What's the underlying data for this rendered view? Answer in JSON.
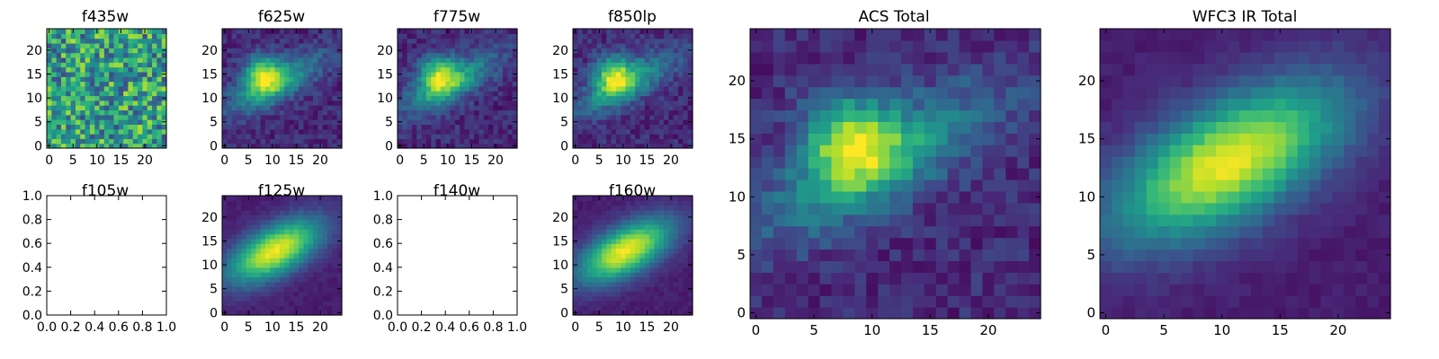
{
  "chart_data": [
    {
      "type": "heatmap",
      "title": "f435w",
      "kind": "image",
      "field": "noise",
      "xlim": [
        -0.5,
        24.5
      ],
      "ylim": [
        -0.5,
        24.5
      ],
      "xticks": [
        0,
        5,
        10,
        15,
        20
      ],
      "yticks": [
        0,
        5,
        10,
        15,
        20
      ],
      "colormap": "viridis"
    },
    {
      "type": "heatmap",
      "title": "f625w",
      "kind": "image",
      "field": "acs",
      "xlim": [
        -0.5,
        24.5
      ],
      "ylim": [
        -0.5,
        24.5
      ],
      "xticks": [
        0,
        5,
        10,
        15,
        20
      ],
      "yticks": [
        0,
        5,
        10,
        15,
        20
      ],
      "colormap": "viridis"
    },
    {
      "type": "heatmap",
      "title": "f775w",
      "kind": "image",
      "field": "acs",
      "xlim": [
        -0.5,
        24.5
      ],
      "ylim": [
        -0.5,
        24.5
      ],
      "xticks": [
        0,
        5,
        10,
        15,
        20
      ],
      "yticks": [
        0,
        5,
        10,
        15,
        20
      ],
      "colormap": "viridis"
    },
    {
      "type": "heatmap",
      "title": "f850lp",
      "kind": "image",
      "field": "acs",
      "xlim": [
        -0.5,
        24.5
      ],
      "ylim": [
        -0.5,
        24.5
      ],
      "xticks": [
        0,
        5,
        10,
        15,
        20
      ],
      "yticks": [
        0,
        5,
        10,
        15,
        20
      ],
      "colormap": "viridis"
    },
    {
      "type": "heatmap",
      "title": "f105w",
      "kind": "empty",
      "xlim": [
        0.0,
        1.0
      ],
      "ylim": [
        0.0,
        1.0
      ],
      "xticks": [
        "0.0",
        "0.2",
        "0.4",
        "0.6",
        "0.8",
        "1.0"
      ],
      "yticks": [
        "0.0",
        "0.2",
        "0.4",
        "0.6",
        "0.8",
        "1.0"
      ]
    },
    {
      "type": "heatmap",
      "title": "f125w",
      "kind": "image",
      "field": "ir",
      "xlim": [
        -0.5,
        24.5
      ],
      "ylim": [
        -0.5,
        24.5
      ],
      "xticks": [
        0,
        5,
        10,
        15,
        20
      ],
      "yticks": [
        0,
        5,
        10,
        15,
        20
      ],
      "colormap": "viridis"
    },
    {
      "type": "heatmap",
      "title": "f140w",
      "kind": "empty",
      "xlim": [
        0.0,
        1.0
      ],
      "ylim": [
        0.0,
        1.0
      ],
      "xticks": [
        "0.0",
        "0.2",
        "0.4",
        "0.6",
        "0.8",
        "1.0"
      ],
      "yticks": [
        "0.0",
        "0.2",
        "0.4",
        "0.6",
        "0.8",
        "1.0"
      ]
    },
    {
      "type": "heatmap",
      "title": "f160w",
      "kind": "image",
      "field": "ir",
      "xlim": [
        -0.5,
        24.5
      ],
      "ylim": [
        -0.5,
        24.5
      ],
      "xticks": [
        0,
        5,
        10,
        15,
        20
      ],
      "yticks": [
        0,
        5,
        10,
        15,
        20
      ],
      "colormap": "viridis"
    },
    {
      "type": "heatmap",
      "title": "ACS Total",
      "kind": "image",
      "field": "acs",
      "xlim": [
        -0.5,
        24.5
      ],
      "ylim": [
        -0.5,
        24.5
      ],
      "xticks": [
        0,
        5,
        10,
        15,
        20
      ],
      "yticks": [
        0,
        5,
        10,
        15,
        20
      ],
      "colormap": "viridis"
    },
    {
      "type": "heatmap",
      "title": "WFC3 IR Total",
      "kind": "image",
      "field": "ir",
      "xlim": [
        -0.5,
        24.5
      ],
      "ylim": [
        -0.5,
        24.5
      ],
      "xticks": [
        0,
        5,
        10,
        15,
        20
      ],
      "yticks": [
        0,
        5,
        10,
        15,
        20
      ],
      "colormap": "viridis"
    }
  ]
}
